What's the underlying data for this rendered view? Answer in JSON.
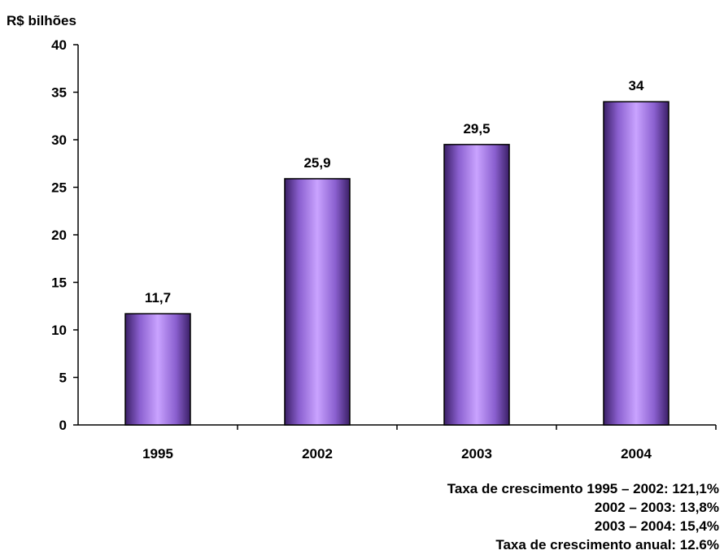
{
  "chart_data": {
    "type": "bar",
    "title": "",
    "ylabel": "R$ bilhões",
    "xlabel": "",
    "categories": [
      "1995",
      "2002",
      "2003",
      "2004"
    ],
    "values": [
      11.7,
      25.9,
      29.5,
      34
    ],
    "value_labels": [
      "11,7",
      "25,9",
      "29,5",
      "34"
    ],
    "ylim": [
      0,
      40
    ],
    "yticks": [
      0,
      5,
      10,
      15,
      20,
      25,
      30,
      35,
      40
    ],
    "grid": false,
    "legend": "none",
    "bar_color": "#B98EF0"
  },
  "notes": [
    "Taxa de crescimento 1995 – 2002: 121,1%",
    "2002 – 2003: 13,8%",
    "2003 – 2004: 15,4%",
    "Taxa de crescimento anual: 12.6%"
  ]
}
